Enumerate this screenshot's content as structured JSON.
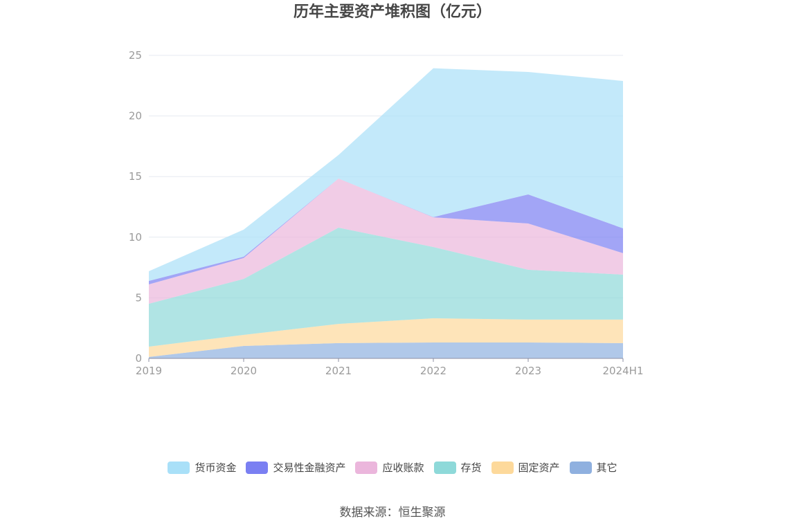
{
  "source": "数据来源：恒生聚源",
  "chart_data": {
    "type": "area",
    "stacked": true,
    "title": "历年主要资产堆积图（亿元）",
    "xlabel": "",
    "ylabel": "",
    "categories": [
      "2019",
      "2020",
      "2021",
      "2022",
      "2023",
      "2024H1"
    ],
    "ylim": [
      0,
      25
    ],
    "yticks": [
      0,
      5,
      10,
      15,
      20,
      25
    ],
    "grid": true,
    "legend_position": "bottom",
    "series": [
      {
        "name": "货币资金",
        "color": "#a9e0f8",
        "values": [
          0.8,
          2.23,
          1.94,
          12.28,
          10.1,
          12.16
        ]
      },
      {
        "name": "交易性金融资产",
        "color": "#7a7ff2",
        "values": [
          0.28,
          0.11,
          0.0,
          0.02,
          2.4,
          2.05
        ]
      },
      {
        "name": "应收账款",
        "color": "#ebb6dc",
        "values": [
          1.6,
          1.72,
          4.05,
          2.45,
          3.82,
          1.77
        ]
      },
      {
        "name": "存货",
        "color": "#8ed9d9",
        "values": [
          3.54,
          4.62,
          7.94,
          5.88,
          4.11,
          3.71
        ]
      },
      {
        "name": "固定资产",
        "color": "#fdd99b",
        "values": [
          0.85,
          0.91,
          1.59,
          2.0,
          1.89,
          1.94
        ]
      },
      {
        "name": "其它",
        "color": "#8fb0df",
        "values": [
          0.12,
          1.03,
          1.26,
          1.31,
          1.31,
          1.26
        ]
      }
    ]
  }
}
